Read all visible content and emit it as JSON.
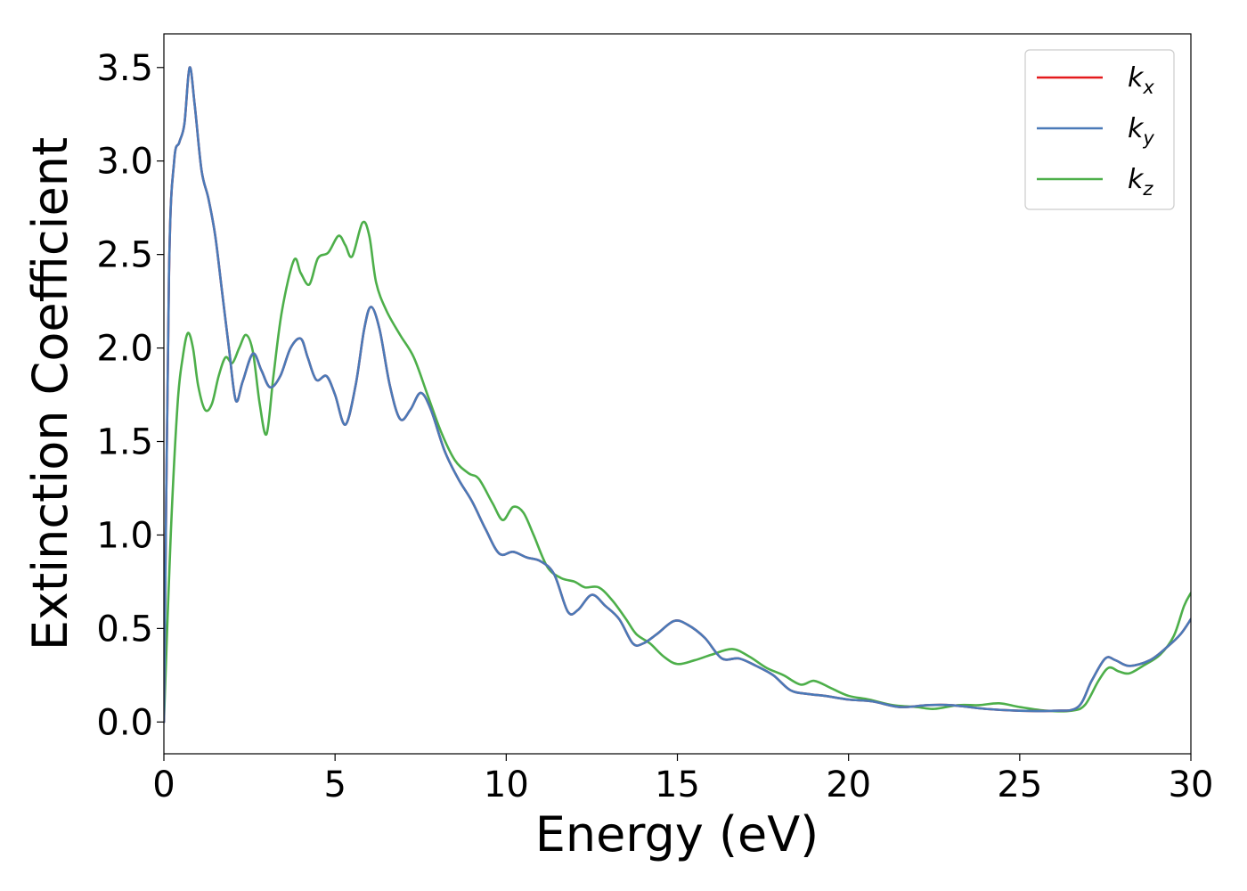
{
  "chart_data": {
    "type": "line",
    "xlabel": "Energy (eV)",
    "ylabel": "Extinction Coefficient",
    "xlim": [
      0,
      30
    ],
    "ylim": [
      -0.17,
      3.68
    ],
    "xticks": [
      0,
      5,
      10,
      15,
      20,
      25,
      30
    ],
    "xtick_labels": [
      "0",
      "5",
      "10",
      "15",
      "20",
      "25",
      "30"
    ],
    "yticks": [
      0.0,
      0.5,
      1.0,
      1.5,
      2.0,
      2.5,
      3.0,
      3.5
    ],
    "ytick_labels": [
      "0.0",
      "0.5",
      "1.0",
      "1.5",
      "2.0",
      "2.5",
      "3.0",
      "3.5"
    ],
    "grid": false,
    "legend_position": "top-right",
    "series": [
      {
        "name": "k_x",
        "label_base": "k",
        "label_sub": "x",
        "color": "#e41a1c",
        "points": [
          [
            0,
            0.0
          ],
          [
            0.15,
            2.4
          ],
          [
            0.3,
            3.0
          ],
          [
            0.45,
            3.1
          ],
          [
            0.6,
            3.2
          ],
          [
            0.75,
            3.5
          ],
          [
            0.9,
            3.3
          ],
          [
            1.1,
            2.95
          ],
          [
            1.3,
            2.8
          ],
          [
            1.5,
            2.6
          ],
          [
            1.7,
            2.3
          ],
          [
            1.9,
            2.0
          ],
          [
            2.1,
            1.72
          ],
          [
            2.3,
            1.82
          ],
          [
            2.6,
            1.97
          ],
          [
            2.85,
            1.88
          ],
          [
            3.1,
            1.79
          ],
          [
            3.4,
            1.85
          ],
          [
            3.7,
            2.0
          ],
          [
            4.0,
            2.05
          ],
          [
            4.2,
            1.95
          ],
          [
            4.45,
            1.83
          ],
          [
            4.75,
            1.85
          ],
          [
            5.0,
            1.75
          ],
          [
            5.3,
            1.59
          ],
          [
            5.6,
            1.8
          ],
          [
            5.85,
            2.1
          ],
          [
            6.05,
            2.22
          ],
          [
            6.3,
            2.1
          ],
          [
            6.6,
            1.8
          ],
          [
            6.9,
            1.62
          ],
          [
            7.2,
            1.67
          ],
          [
            7.5,
            1.76
          ],
          [
            7.8,
            1.67
          ],
          [
            8.2,
            1.45
          ],
          [
            8.6,
            1.3
          ],
          [
            9.0,
            1.18
          ],
          [
            9.4,
            1.03
          ],
          [
            9.8,
            0.9
          ],
          [
            10.2,
            0.91
          ],
          [
            10.6,
            0.88
          ],
          [
            11.0,
            0.86
          ],
          [
            11.4,
            0.79
          ],
          [
            11.8,
            0.59
          ],
          [
            12.1,
            0.6
          ],
          [
            12.5,
            0.68
          ],
          [
            12.9,
            0.62
          ],
          [
            13.3,
            0.55
          ],
          [
            13.7,
            0.42
          ],
          [
            14.0,
            0.42
          ],
          [
            14.4,
            0.47
          ],
          [
            14.9,
            0.54
          ],
          [
            15.3,
            0.52
          ],
          [
            15.8,
            0.45
          ],
          [
            16.3,
            0.34
          ],
          [
            16.8,
            0.34
          ],
          [
            17.3,
            0.3
          ],
          [
            17.8,
            0.25
          ],
          [
            18.3,
            0.17
          ],
          [
            18.8,
            0.15
          ],
          [
            19.3,
            0.14
          ],
          [
            20.0,
            0.12
          ],
          [
            20.7,
            0.11
          ],
          [
            21.5,
            0.08
          ],
          [
            22.3,
            0.09
          ],
          [
            23.0,
            0.09
          ],
          [
            24.0,
            0.07
          ],
          [
            25.0,
            0.06
          ],
          [
            26.0,
            0.06
          ],
          [
            26.7,
            0.08
          ],
          [
            27.1,
            0.22
          ],
          [
            27.5,
            0.34
          ],
          [
            27.8,
            0.33
          ],
          [
            28.2,
            0.3
          ],
          [
            28.8,
            0.33
          ],
          [
            29.3,
            0.4
          ],
          [
            29.7,
            0.47
          ],
          [
            30.0,
            0.55
          ]
        ]
      },
      {
        "name": "k_y",
        "label_base": "k",
        "label_sub": "y",
        "color": "#4a7ab8",
        "points": [
          [
            0,
            0.0
          ],
          [
            0.15,
            2.4
          ],
          [
            0.3,
            3.0
          ],
          [
            0.45,
            3.1
          ],
          [
            0.6,
            3.2
          ],
          [
            0.75,
            3.5
          ],
          [
            0.9,
            3.3
          ],
          [
            1.1,
            2.95
          ],
          [
            1.3,
            2.8
          ],
          [
            1.5,
            2.6
          ],
          [
            1.7,
            2.3
          ],
          [
            1.9,
            2.0
          ],
          [
            2.1,
            1.72
          ],
          [
            2.3,
            1.82
          ],
          [
            2.6,
            1.97
          ],
          [
            2.85,
            1.88
          ],
          [
            3.1,
            1.79
          ],
          [
            3.4,
            1.85
          ],
          [
            3.7,
            2.0
          ],
          [
            4.0,
            2.05
          ],
          [
            4.2,
            1.95
          ],
          [
            4.45,
            1.83
          ],
          [
            4.75,
            1.85
          ],
          [
            5.0,
            1.75
          ],
          [
            5.3,
            1.59
          ],
          [
            5.6,
            1.8
          ],
          [
            5.85,
            2.1
          ],
          [
            6.05,
            2.22
          ],
          [
            6.3,
            2.1
          ],
          [
            6.6,
            1.8
          ],
          [
            6.9,
            1.62
          ],
          [
            7.2,
            1.67
          ],
          [
            7.5,
            1.76
          ],
          [
            7.8,
            1.67
          ],
          [
            8.2,
            1.45
          ],
          [
            8.6,
            1.3
          ],
          [
            9.0,
            1.18
          ],
          [
            9.4,
            1.03
          ],
          [
            9.8,
            0.9
          ],
          [
            10.2,
            0.91
          ],
          [
            10.6,
            0.88
          ],
          [
            11.0,
            0.86
          ],
          [
            11.4,
            0.79
          ],
          [
            11.8,
            0.59
          ],
          [
            12.1,
            0.6
          ],
          [
            12.5,
            0.68
          ],
          [
            12.9,
            0.62
          ],
          [
            13.3,
            0.55
          ],
          [
            13.7,
            0.42
          ],
          [
            14.0,
            0.42
          ],
          [
            14.4,
            0.47
          ],
          [
            14.9,
            0.54
          ],
          [
            15.3,
            0.52
          ],
          [
            15.8,
            0.45
          ],
          [
            16.3,
            0.34
          ],
          [
            16.8,
            0.34
          ],
          [
            17.3,
            0.3
          ],
          [
            17.8,
            0.25
          ],
          [
            18.3,
            0.17
          ],
          [
            18.8,
            0.15
          ],
          [
            19.3,
            0.14
          ],
          [
            20.0,
            0.12
          ],
          [
            20.7,
            0.11
          ],
          [
            21.5,
            0.08
          ],
          [
            22.3,
            0.09
          ],
          [
            23.0,
            0.09
          ],
          [
            24.0,
            0.07
          ],
          [
            25.0,
            0.06
          ],
          [
            26.0,
            0.06
          ],
          [
            26.7,
            0.08
          ],
          [
            27.1,
            0.22
          ],
          [
            27.5,
            0.34
          ],
          [
            27.8,
            0.33
          ],
          [
            28.2,
            0.3
          ],
          [
            28.8,
            0.33
          ],
          [
            29.3,
            0.4
          ],
          [
            29.7,
            0.47
          ],
          [
            30.0,
            0.55
          ]
        ]
      },
      {
        "name": "k_z",
        "label_base": "k",
        "label_sub": "z",
        "color": "#4daf4a",
        "points": [
          [
            0,
            0.0
          ],
          [
            0.2,
            1.0
          ],
          [
            0.4,
            1.7
          ],
          [
            0.55,
            1.95
          ],
          [
            0.7,
            2.08
          ],
          [
            0.85,
            2.0
          ],
          [
            1.0,
            1.8
          ],
          [
            1.2,
            1.67
          ],
          [
            1.4,
            1.7
          ],
          [
            1.6,
            1.85
          ],
          [
            1.8,
            1.95
          ],
          [
            2.0,
            1.92
          ],
          [
            2.2,
            2.0
          ],
          [
            2.4,
            2.07
          ],
          [
            2.6,
            1.98
          ],
          [
            2.8,
            1.7
          ],
          [
            3.0,
            1.54
          ],
          [
            3.2,
            1.85
          ],
          [
            3.45,
            2.2
          ],
          [
            3.8,
            2.47
          ],
          [
            4.0,
            2.4
          ],
          [
            4.25,
            2.34
          ],
          [
            4.5,
            2.48
          ],
          [
            4.8,
            2.51
          ],
          [
            5.1,
            2.6
          ],
          [
            5.3,
            2.55
          ],
          [
            5.5,
            2.49
          ],
          [
            5.8,
            2.67
          ],
          [
            6.0,
            2.6
          ],
          [
            6.2,
            2.35
          ],
          [
            6.5,
            2.2
          ],
          [
            6.9,
            2.07
          ],
          [
            7.3,
            1.95
          ],
          [
            7.7,
            1.75
          ],
          [
            8.1,
            1.55
          ],
          [
            8.5,
            1.4
          ],
          [
            8.9,
            1.33
          ],
          [
            9.2,
            1.3
          ],
          [
            9.6,
            1.17
          ],
          [
            9.9,
            1.08
          ],
          [
            10.2,
            1.15
          ],
          [
            10.5,
            1.12
          ],
          [
            10.8,
            1.0
          ],
          [
            11.2,
            0.83
          ],
          [
            11.6,
            0.77
          ],
          [
            12.0,
            0.75
          ],
          [
            12.3,
            0.72
          ],
          [
            12.7,
            0.72
          ],
          [
            13.1,
            0.65
          ],
          [
            13.5,
            0.55
          ],
          [
            13.8,
            0.47
          ],
          [
            14.2,
            0.42
          ],
          [
            14.6,
            0.35
          ],
          [
            15.0,
            0.31
          ],
          [
            15.5,
            0.33
          ],
          [
            16.0,
            0.36
          ],
          [
            16.6,
            0.39
          ],
          [
            17.1,
            0.35
          ],
          [
            17.6,
            0.29
          ],
          [
            18.1,
            0.25
          ],
          [
            18.6,
            0.2
          ],
          [
            19.0,
            0.22
          ],
          [
            19.5,
            0.18
          ],
          [
            20.0,
            0.14
          ],
          [
            20.6,
            0.12
          ],
          [
            21.3,
            0.09
          ],
          [
            22.0,
            0.08
          ],
          [
            22.5,
            0.07
          ],
          [
            23.2,
            0.09
          ],
          [
            23.8,
            0.09
          ],
          [
            24.4,
            0.1
          ],
          [
            25.0,
            0.08
          ],
          [
            25.8,
            0.06
          ],
          [
            26.5,
            0.06
          ],
          [
            26.9,
            0.09
          ],
          [
            27.3,
            0.22
          ],
          [
            27.6,
            0.29
          ],
          [
            27.9,
            0.27
          ],
          [
            28.2,
            0.26
          ],
          [
            28.6,
            0.3
          ],
          [
            29.1,
            0.36
          ],
          [
            29.5,
            0.46
          ],
          [
            29.8,
            0.62
          ],
          [
            30.0,
            0.69
          ]
        ]
      }
    ]
  }
}
